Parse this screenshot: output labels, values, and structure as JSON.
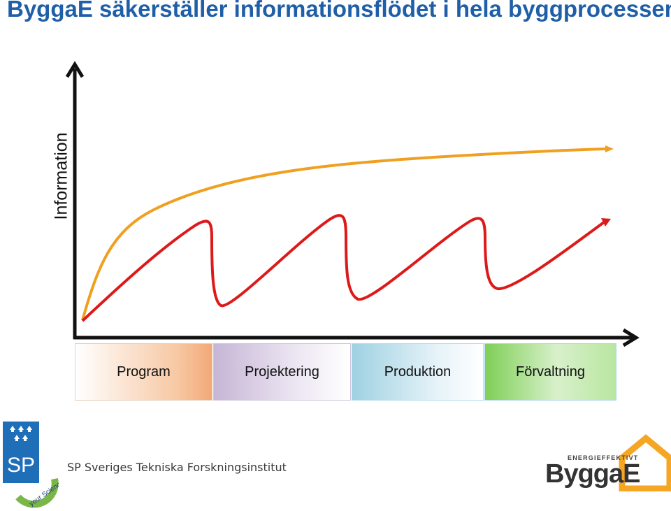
{
  "title": "ByggaE säkerställer informationsflödet i hela byggprocessen",
  "axis": {
    "y_label": "Information"
  },
  "phases": [
    {
      "label": "Program"
    },
    {
      "label": "Projektering"
    },
    {
      "label": "Produktion"
    },
    {
      "label": "Förvaltning"
    }
  ],
  "colors": {
    "title": "#1f5fa8",
    "orange_curve": "#f0a020",
    "red_curve": "#dd1a1a",
    "axis": "#111111"
  },
  "footer": {
    "sp_logo_text": "SP",
    "sp_badge_text": "your Science Partner",
    "institute": "SP Sveriges Tekniska Forskningsinstitut",
    "byggae_tagline": "ENERGIEFFEKTIVT",
    "byggae_name": "ByggaE"
  }
}
